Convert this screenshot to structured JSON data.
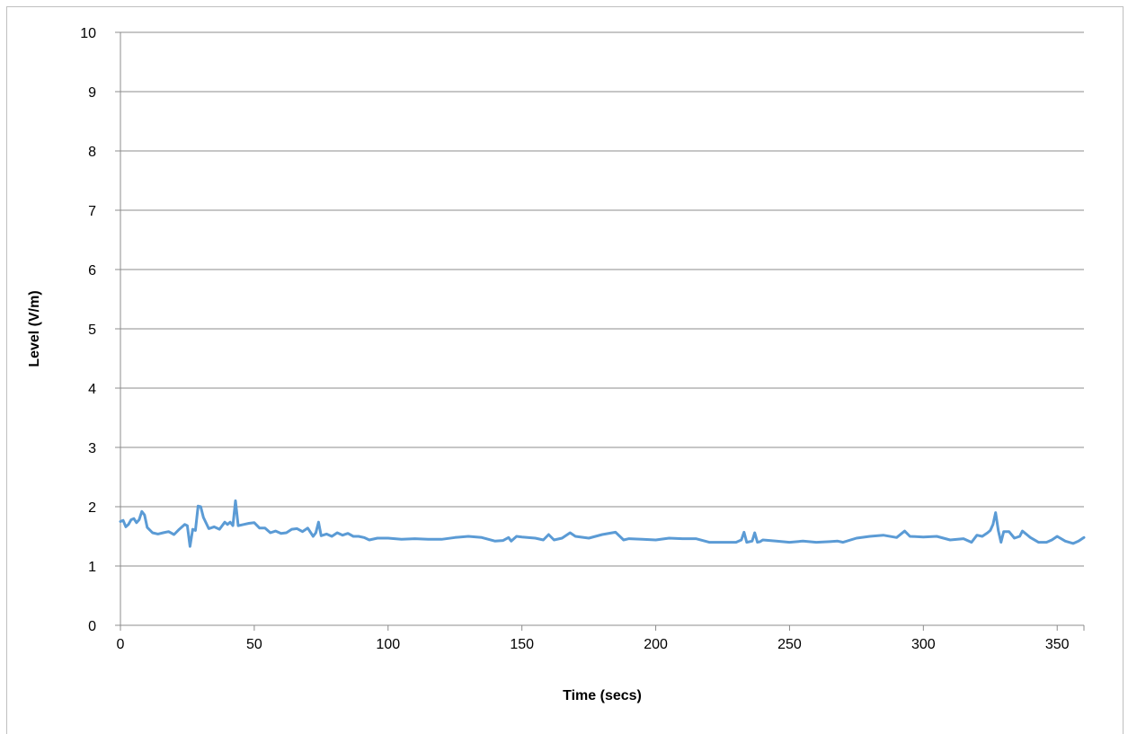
{
  "chart_data": {
    "type": "line",
    "title": "",
    "xlabel": "Time (secs)",
    "ylabel": "Level (V/m)",
    "xlim": [
      0,
      360
    ],
    "ylim": [
      0,
      10
    ],
    "x_ticks": [
      "0",
      "50",
      "100",
      "150",
      "200",
      "250",
      "300",
      "350"
    ],
    "y_ticks": [
      "0",
      "1",
      "2",
      "3",
      "4",
      "5",
      "6",
      "7",
      "8",
      "9",
      "10"
    ],
    "grid": "horizontal",
    "legend": "none",
    "colors": {
      "line": "#5b9bd5",
      "grid": "#8c8c8c",
      "axis": "#8c8c8c"
    },
    "series": [
      {
        "x": [
          0,
          1,
          2,
          3,
          4,
          5,
          6,
          7,
          8,
          9,
          10,
          12,
          14,
          16,
          18,
          20,
          22,
          24,
          25,
          26,
          27,
          28,
          29,
          30,
          31,
          33,
          35,
          37,
          39,
          40,
          41,
          42,
          43,
          44,
          46,
          48,
          50,
          52,
          54,
          56,
          58,
          60,
          62,
          64,
          66,
          68,
          70,
          72,
          73,
          74,
          75,
          77,
          79,
          81,
          83,
          85,
          87,
          89,
          91,
          93,
          96,
          100,
          105,
          110,
          115,
          120,
          125,
          130,
          135,
          140,
          143,
          145,
          146,
          148,
          150,
          155,
          158,
          160,
          162,
          165,
          168,
          170,
          175,
          180,
          185,
          188,
          190,
          195,
          200,
          205,
          210,
          215,
          220,
          225,
          230,
          232,
          233,
          234,
          236,
          237,
          238,
          239,
          240,
          245,
          250,
          255,
          260,
          265,
          268,
          270,
          275,
          280,
          285,
          290,
          293,
          295,
          300,
          305,
          310,
          315,
          318,
          320,
          322,
          324,
          325,
          326,
          327,
          328,
          329,
          330,
          332,
          334,
          336,
          337,
          340,
          343,
          346,
          348,
          350,
          353,
          356,
          358,
          360
        ],
        "values": [
          1.75,
          1.77,
          1.66,
          1.7,
          1.78,
          1.8,
          1.73,
          1.78,
          1.92,
          1.86,
          1.65,
          1.56,
          1.54,
          1.56,
          1.58,
          1.53,
          1.62,
          1.7,
          1.68,
          1.33,
          1.62,
          1.6,
          2.01,
          2.0,
          1.82,
          1.63,
          1.66,
          1.62,
          1.74,
          1.7,
          1.74,
          1.68,
          2.1,
          1.68,
          1.7,
          1.72,
          1.73,
          1.64,
          1.64,
          1.56,
          1.59,
          1.55,
          1.56,
          1.62,
          1.63,
          1.58,
          1.64,
          1.5,
          1.56,
          1.74,
          1.51,
          1.54,
          1.5,
          1.56,
          1.52,
          1.55,
          1.5,
          1.5,
          1.48,
          1.44,
          1.47,
          1.47,
          1.45,
          1.46,
          1.45,
          1.45,
          1.48,
          1.5,
          1.48,
          1.42,
          1.43,
          1.48,
          1.42,
          1.5,
          1.49,
          1.47,
          1.44,
          1.53,
          1.44,
          1.47,
          1.56,
          1.5,
          1.47,
          1.53,
          1.57,
          1.44,
          1.46,
          1.45,
          1.44,
          1.47,
          1.46,
          1.46,
          1.4,
          1.4,
          1.4,
          1.44,
          1.57,
          1.4,
          1.42,
          1.56,
          1.4,
          1.41,
          1.44,
          1.42,
          1.4,
          1.42,
          1.4,
          1.41,
          1.42,
          1.4,
          1.47,
          1.5,
          1.52,
          1.48,
          1.59,
          1.5,
          1.49,
          1.5,
          1.44,
          1.46,
          1.4,
          1.52,
          1.5,
          1.56,
          1.6,
          1.7,
          1.9,
          1.6,
          1.4,
          1.58,
          1.58,
          1.47,
          1.5,
          1.59,
          1.48,
          1.4,
          1.4,
          1.44,
          1.5,
          1.42,
          1.38,
          1.42,
          1.48
        ]
      }
    ]
  }
}
